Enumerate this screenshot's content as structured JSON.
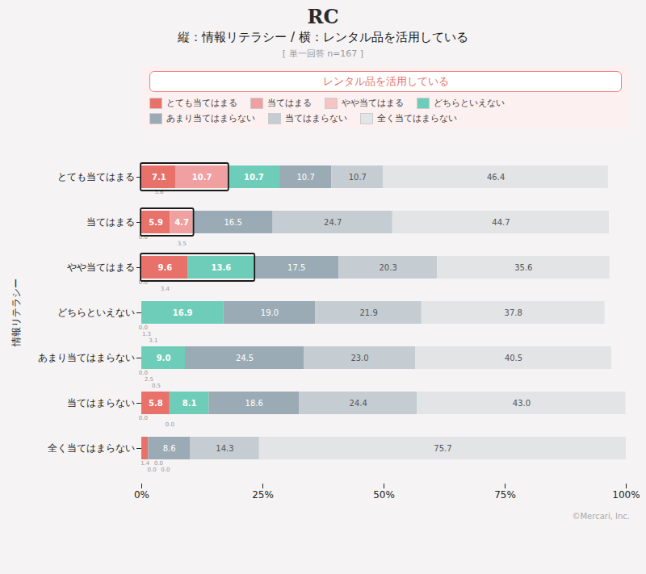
{
  "chart_data": {
    "type": "bar",
    "orientation": "horizontal",
    "stacked": true,
    "logo": "RC",
    "title": "縦：情報リテラシー / 横：レンタル品を活用している",
    "subtitle": "[ 単一回答 n=167 ]",
    "caption": "©Mercari, Inc.",
    "xlabel": "レンタル品を活用している",
    "ylabel": "情報リテラシー",
    "categories": [
      "とても当てはまる",
      "当てはまる",
      "やや当てはまる",
      "どちらといえない",
      "あまり当てはまらない",
      "当てはまらない",
      "全く当てはまらない"
    ],
    "series": [
      {
        "name": "とても当てはまる",
        "color": "#e8716a",
        "values": [
          7.1,
          5.9,
          9.6,
          0.0,
          0.0,
          5.8,
          1.4
        ],
        "value_labels": [
          "7.1",
          "5.9",
          "9.6",
          null,
          null,
          "5.8",
          null
        ]
      },
      {
        "name": "当てはまる",
        "color": "#f0a0a0",
        "values": [
          10.7,
          4.7,
          0.0,
          0.0,
          0.0,
          0.0,
          0.0
        ],
        "value_labels": [
          "10.7",
          "4.7",
          null,
          null,
          null,
          null,
          null
        ]
      },
      {
        "name": "やや当てはまる",
        "color": "#f5c5c5",
        "values": [
          0.0,
          0.0,
          0.0,
          0.0,
          0.0,
          0.0,
          0.0
        ],
        "value_labels": [
          null,
          null,
          null,
          null,
          null,
          null,
          null
        ]
      },
      {
        "name": "どちらといえない",
        "color": "#6ecdb8",
        "values": [
          10.7,
          0.0,
          13.6,
          16.9,
          9.0,
          8.1,
          0.0
        ],
        "value_labels": [
          "10.7",
          null,
          "13.6",
          "16.9",
          "9.0",
          "8.1",
          null
        ]
      },
      {
        "name": "あまり当てはまらない",
        "color": "#9aabb5",
        "values": [
          10.7,
          16.5,
          17.5,
          19.0,
          24.5,
          18.6,
          8.6
        ],
        "value_labels": [
          "10.7",
          "16.5",
          "17.5",
          "19.0",
          "24.5",
          "18.6",
          "8.6"
        ]
      },
      {
        "name": "当てはまらない",
        "color": "#c5cdd3",
        "values": [
          10.7,
          24.7,
          20.3,
          21.9,
          23.0,
          24.4,
          14.3
        ],
        "value_labels": [
          "10.7",
          "24.7",
          "20.3",
          "21.9",
          "23.0",
          "24.4",
          "14.3"
        ]
      },
      {
        "name": "全く当てはまらない",
        "color": "#e2e4e6",
        "values": [
          46.4,
          44.7,
          35.6,
          37.8,
          40.5,
          43.0,
          75.7
        ],
        "value_labels": [
          "46.4",
          "44.7",
          "35.6",
          "37.8",
          "40.5",
          "43.0",
          "75.7"
        ]
      }
    ],
    "xlim": [
      0,
      100
    ],
    "xticks": [
      {
        "value": 0,
        "label": "0%"
      },
      {
        "value": 25,
        "label": "25%"
      },
      {
        "value": 50,
        "label": "50%"
      },
      {
        "value": 75,
        "label": "75%"
      },
      {
        "value": 100,
        "label": "100%"
      }
    ],
    "grid": false,
    "legend": "top",
    "data_labels": true,
    "annotations": [
      {
        "text": "3.6",
        "x": 3.55,
        "y": "とても当てはまる"
      },
      {
        "text": "0.0",
        "x": 0.3,
        "y": "当てはまる"
      },
      {
        "text": "3.5",
        "x": 8.3,
        "y": "当てはまる"
      },
      {
        "text": "0.0",
        "x": 0.3,
        "y": "やや当てはまる"
      },
      {
        "text": "3.4",
        "x": 4.8,
        "y": "やや当てはまる"
      },
      {
        "text": "0.0",
        "x": 0.3,
        "y": "どちらといえない"
      },
      {
        "text": "1.3",
        "x": 1.0,
        "y": "どちらといえない"
      },
      {
        "text": "3.1",
        "x": 2.4,
        "y": "どちらといえない"
      },
      {
        "text": "0.0",
        "x": 0.3,
        "y": "あまり当てはまらない"
      },
      {
        "text": "2.5",
        "x": 1.5,
        "y": "あまり当てはまらない"
      },
      {
        "text": "0.5",
        "x": 3.0,
        "y": "あまり当てはまらない"
      },
      {
        "text": "0.0",
        "x": 0.3,
        "y": "当てはまらない"
      },
      {
        "text": "0.0",
        "x": 5.8,
        "y": "当てはまらない"
      },
      {
        "text": "1.4",
        "x": 0.7,
        "y": "全く当てはまらない"
      },
      {
        "text": "0.0",
        "x": 2.1,
        "y": "全く当てはまらない"
      },
      {
        "text": "0.0",
        "x": 3.5,
        "y": "全く当てはまらない"
      },
      {
        "text": "0.0",
        "x": 4.9,
        "y": "全く当てはまらない"
      }
    ],
    "highlights": [
      {
        "y": "とても当てはまる",
        "x1": 0,
        "x2": 17.8
      },
      {
        "y": "当てはまる",
        "x1": 0,
        "x2": 10.6
      },
      {
        "y": "やや当てはまる",
        "x1": 0,
        "x2": 23.2
      }
    ]
  }
}
